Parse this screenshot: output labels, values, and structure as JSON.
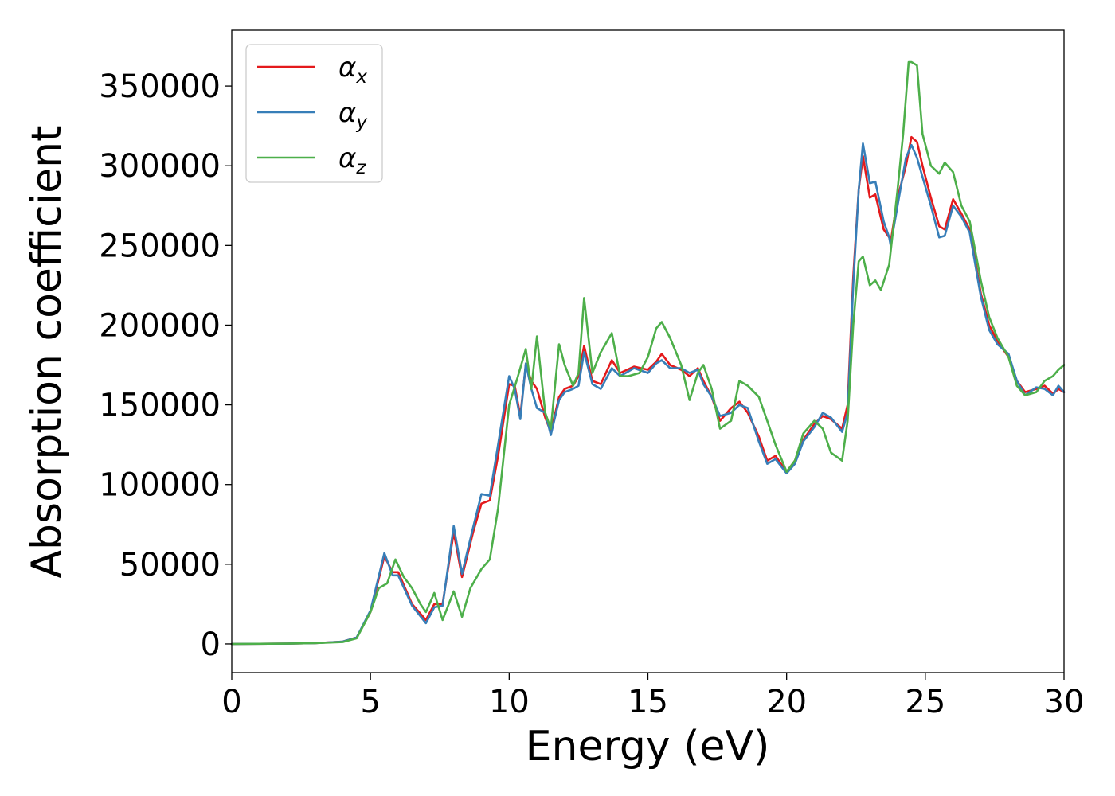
{
  "chart_data": {
    "type": "line",
    "title": "",
    "xlabel": "Energy (eV)",
    "ylabel": "Absorption coefficient",
    "xlim": [
      0,
      30
    ],
    "ylim": [
      -18000,
      385000
    ],
    "xticks": [
      0,
      5,
      10,
      15,
      20,
      25,
      30
    ],
    "xtick_labels": [
      "0",
      "5",
      "10",
      "15",
      "20",
      "25",
      "30"
    ],
    "yticks": [
      0,
      50000,
      100000,
      150000,
      200000,
      250000,
      300000,
      350000
    ],
    "ytick_labels": [
      "0",
      "50000",
      "100000",
      "150000",
      "200000",
      "250000",
      "300000",
      "350000"
    ],
    "grid": false,
    "legend_position": "top-left",
    "series": [
      {
        "name": "α",
        "subscript": "x",
        "color": "#e41a1c",
        "x": [
          0,
          2,
          3,
          4,
          4.5,
          5.0,
          5.5,
          5.8,
          6.0,
          6.5,
          7.0,
          7.3,
          7.6,
          8.0,
          8.3,
          8.7,
          9.0,
          9.3,
          9.6,
          10.0,
          10.2,
          10.4,
          10.6,
          10.8,
          11.0,
          11.3,
          11.5,
          11.8,
          12.0,
          12.3,
          12.5,
          12.7,
          13.0,
          13.3,
          13.7,
          14.0,
          14.5,
          15.0,
          15.3,
          15.5,
          15.8,
          16.2,
          16.5,
          16.8,
          17.0,
          17.3,
          17.6,
          18.0,
          18.3,
          18.6,
          19.0,
          19.3,
          19.6,
          20.0,
          20.3,
          20.6,
          21.0,
          21.3,
          21.6,
          22.0,
          22.2,
          22.4,
          22.6,
          22.75,
          23.0,
          23.2,
          23.5,
          23.7,
          23.75,
          24.0,
          24.3,
          24.5,
          24.7,
          24.9,
          25.2,
          25.5,
          25.7,
          26.0,
          26.3,
          26.6,
          27.0,
          27.3,
          27.6,
          28.0,
          28.3,
          28.6,
          29.0,
          29.3,
          29.6,
          29.8,
          30.0
        ],
        "y": [
          0,
          200,
          500,
          1500,
          4000,
          20000,
          55000,
          45000,
          45000,
          25000,
          15000,
          25000,
          25000,
          70000,
          42000,
          70000,
          88000,
          90000,
          118000,
          163000,
          162000,
          143000,
          175000,
          165000,
          160000,
          142000,
          133000,
          155000,
          160000,
          162000,
          168000,
          187000,
          165000,
          163000,
          178000,
          170000,
          174000,
          172000,
          177000,
          182000,
          175000,
          172000,
          168000,
          173000,
          165000,
          155000,
          140000,
          148000,
          152000,
          145000,
          130000,
          115000,
          118000,
          108000,
          115000,
          128000,
          138000,
          143000,
          141000,
          135000,
          150000,
          230000,
          285000,
          306000,
          280000,
          282000,
          260000,
          255000,
          252000,
          280000,
          300000,
          318000,
          315000,
          300000,
          280000,
          262000,
          260000,
          279000,
          270000,
          260000,
          220000,
          200000,
          190000,
          180000,
          165000,
          158000,
          160000,
          162000,
          157000,
          160000,
          158000
        ]
      },
      {
        "name": "α",
        "subscript": "y",
        "color": "#377eb8",
        "x": [
          0,
          2,
          3,
          4,
          4.5,
          5.0,
          5.5,
          5.8,
          6.0,
          6.5,
          7.0,
          7.3,
          7.6,
          8.0,
          8.3,
          8.7,
          9.0,
          9.3,
          9.6,
          10.0,
          10.2,
          10.4,
          10.6,
          10.8,
          11.0,
          11.3,
          11.5,
          11.8,
          12.0,
          12.3,
          12.5,
          12.7,
          13.0,
          13.3,
          13.7,
          14.0,
          14.5,
          15.0,
          15.3,
          15.5,
          15.8,
          16.2,
          16.5,
          16.8,
          17.0,
          17.3,
          17.6,
          18.0,
          18.3,
          18.6,
          19.0,
          19.3,
          19.6,
          20.0,
          20.3,
          20.6,
          21.0,
          21.3,
          21.6,
          22.0,
          22.2,
          22.4,
          22.6,
          22.75,
          23.0,
          23.2,
          23.5,
          23.7,
          23.75,
          24.0,
          24.3,
          24.5,
          24.7,
          24.9,
          25.2,
          25.5,
          25.7,
          26.0,
          26.3,
          26.6,
          27.0,
          27.3,
          27.6,
          28.0,
          28.3,
          28.6,
          29.0,
          29.3,
          29.6,
          29.8,
          30.0
        ],
        "y": [
          0,
          200,
          500,
          1500,
          4000,
          21000,
          57000,
          43000,
          43000,
          24000,
          13000,
          23000,
          24000,
          74000,
          44000,
          73000,
          94000,
          93000,
          125000,
          168000,
          160000,
          141000,
          176000,
          160000,
          148000,
          145000,
          131000,
          153000,
          158000,
          160000,
          162000,
          183000,
          163000,
          160000,
          173000,
          168000,
          173000,
          170000,
          176000,
          178000,
          173000,
          173000,
          170000,
          172000,
          163000,
          155000,
          143000,
          145000,
          150000,
          148000,
          127000,
          113000,
          116000,
          107000,
          113000,
          127000,
          136000,
          145000,
          142000,
          133000,
          145000,
          225000,
          285000,
          314000,
          289000,
          290000,
          265000,
          255000,
          250000,
          275000,
          305000,
          313000,
          305000,
          293000,
          275000,
          255000,
          256000,
          275000,
          268000,
          258000,
          218000,
          197000,
          188000,
          182000,
          165000,
          156000,
          161000,
          160000,
          156000,
          162000,
          158000
        ]
      },
      {
        "name": "α",
        "subscript": "z",
        "color": "#4daf4a",
        "x": [
          0,
          2,
          3,
          4,
          4.5,
          5.0,
          5.3,
          5.6,
          5.9,
          6.2,
          6.5,
          6.8,
          7.0,
          7.3,
          7.6,
          8.0,
          8.3,
          8.6,
          9.0,
          9.3,
          9.6,
          10.0,
          10.3,
          10.6,
          10.8,
          11.0,
          11.3,
          11.5,
          11.8,
          12.0,
          12.3,
          12.5,
          12.7,
          13.0,
          13.3,
          13.7,
          14.0,
          14.3,
          14.7,
          15.0,
          15.3,
          15.5,
          15.8,
          16.2,
          16.5,
          16.8,
          17.0,
          17.3,
          17.6,
          18.0,
          18.3,
          18.6,
          19.0,
          19.3,
          19.6,
          20.0,
          20.3,
          20.6,
          21.0,
          21.3,
          21.6,
          22.0,
          22.2,
          22.4,
          22.6,
          22.75,
          23.0,
          23.2,
          23.4,
          23.7,
          24.0,
          24.2,
          24.4,
          24.5,
          24.7,
          24.9,
          25.2,
          25.5,
          25.7,
          26.0,
          26.3,
          26.6,
          27.0,
          27.3,
          27.6,
          28.0,
          28.3,
          28.6,
          29.0,
          29.3,
          29.6,
          29.8,
          30.0
        ],
        "y": [
          0,
          200,
          500,
          1200,
          3500,
          20000,
          35000,
          38000,
          53000,
          42000,
          35000,
          25000,
          20000,
          32000,
          15000,
          33000,
          17000,
          35000,
          47000,
          53000,
          85000,
          150000,
          167000,
          185000,
          160000,
          193000,
          145000,
          135000,
          188000,
          175000,
          162000,
          170000,
          217000,
          170000,
          183000,
          195000,
          168000,
          168000,
          170000,
          180000,
          198000,
          202000,
          192000,
          175000,
          153000,
          170000,
          175000,
          160000,
          135000,
          140000,
          165000,
          162000,
          155000,
          140000,
          125000,
          108000,
          115000,
          132000,
          140000,
          135000,
          120000,
          115000,
          140000,
          200000,
          240000,
          243000,
          225000,
          228000,
          222000,
          238000,
          285000,
          320000,
          365000,
          365000,
          363000,
          320000,
          300000,
          295000,
          302000,
          296000,
          275000,
          265000,
          228000,
          205000,
          192000,
          180000,
          162000,
          156000,
          158000,
          165000,
          168000,
          172000,
          175000
        ]
      }
    ]
  }
}
